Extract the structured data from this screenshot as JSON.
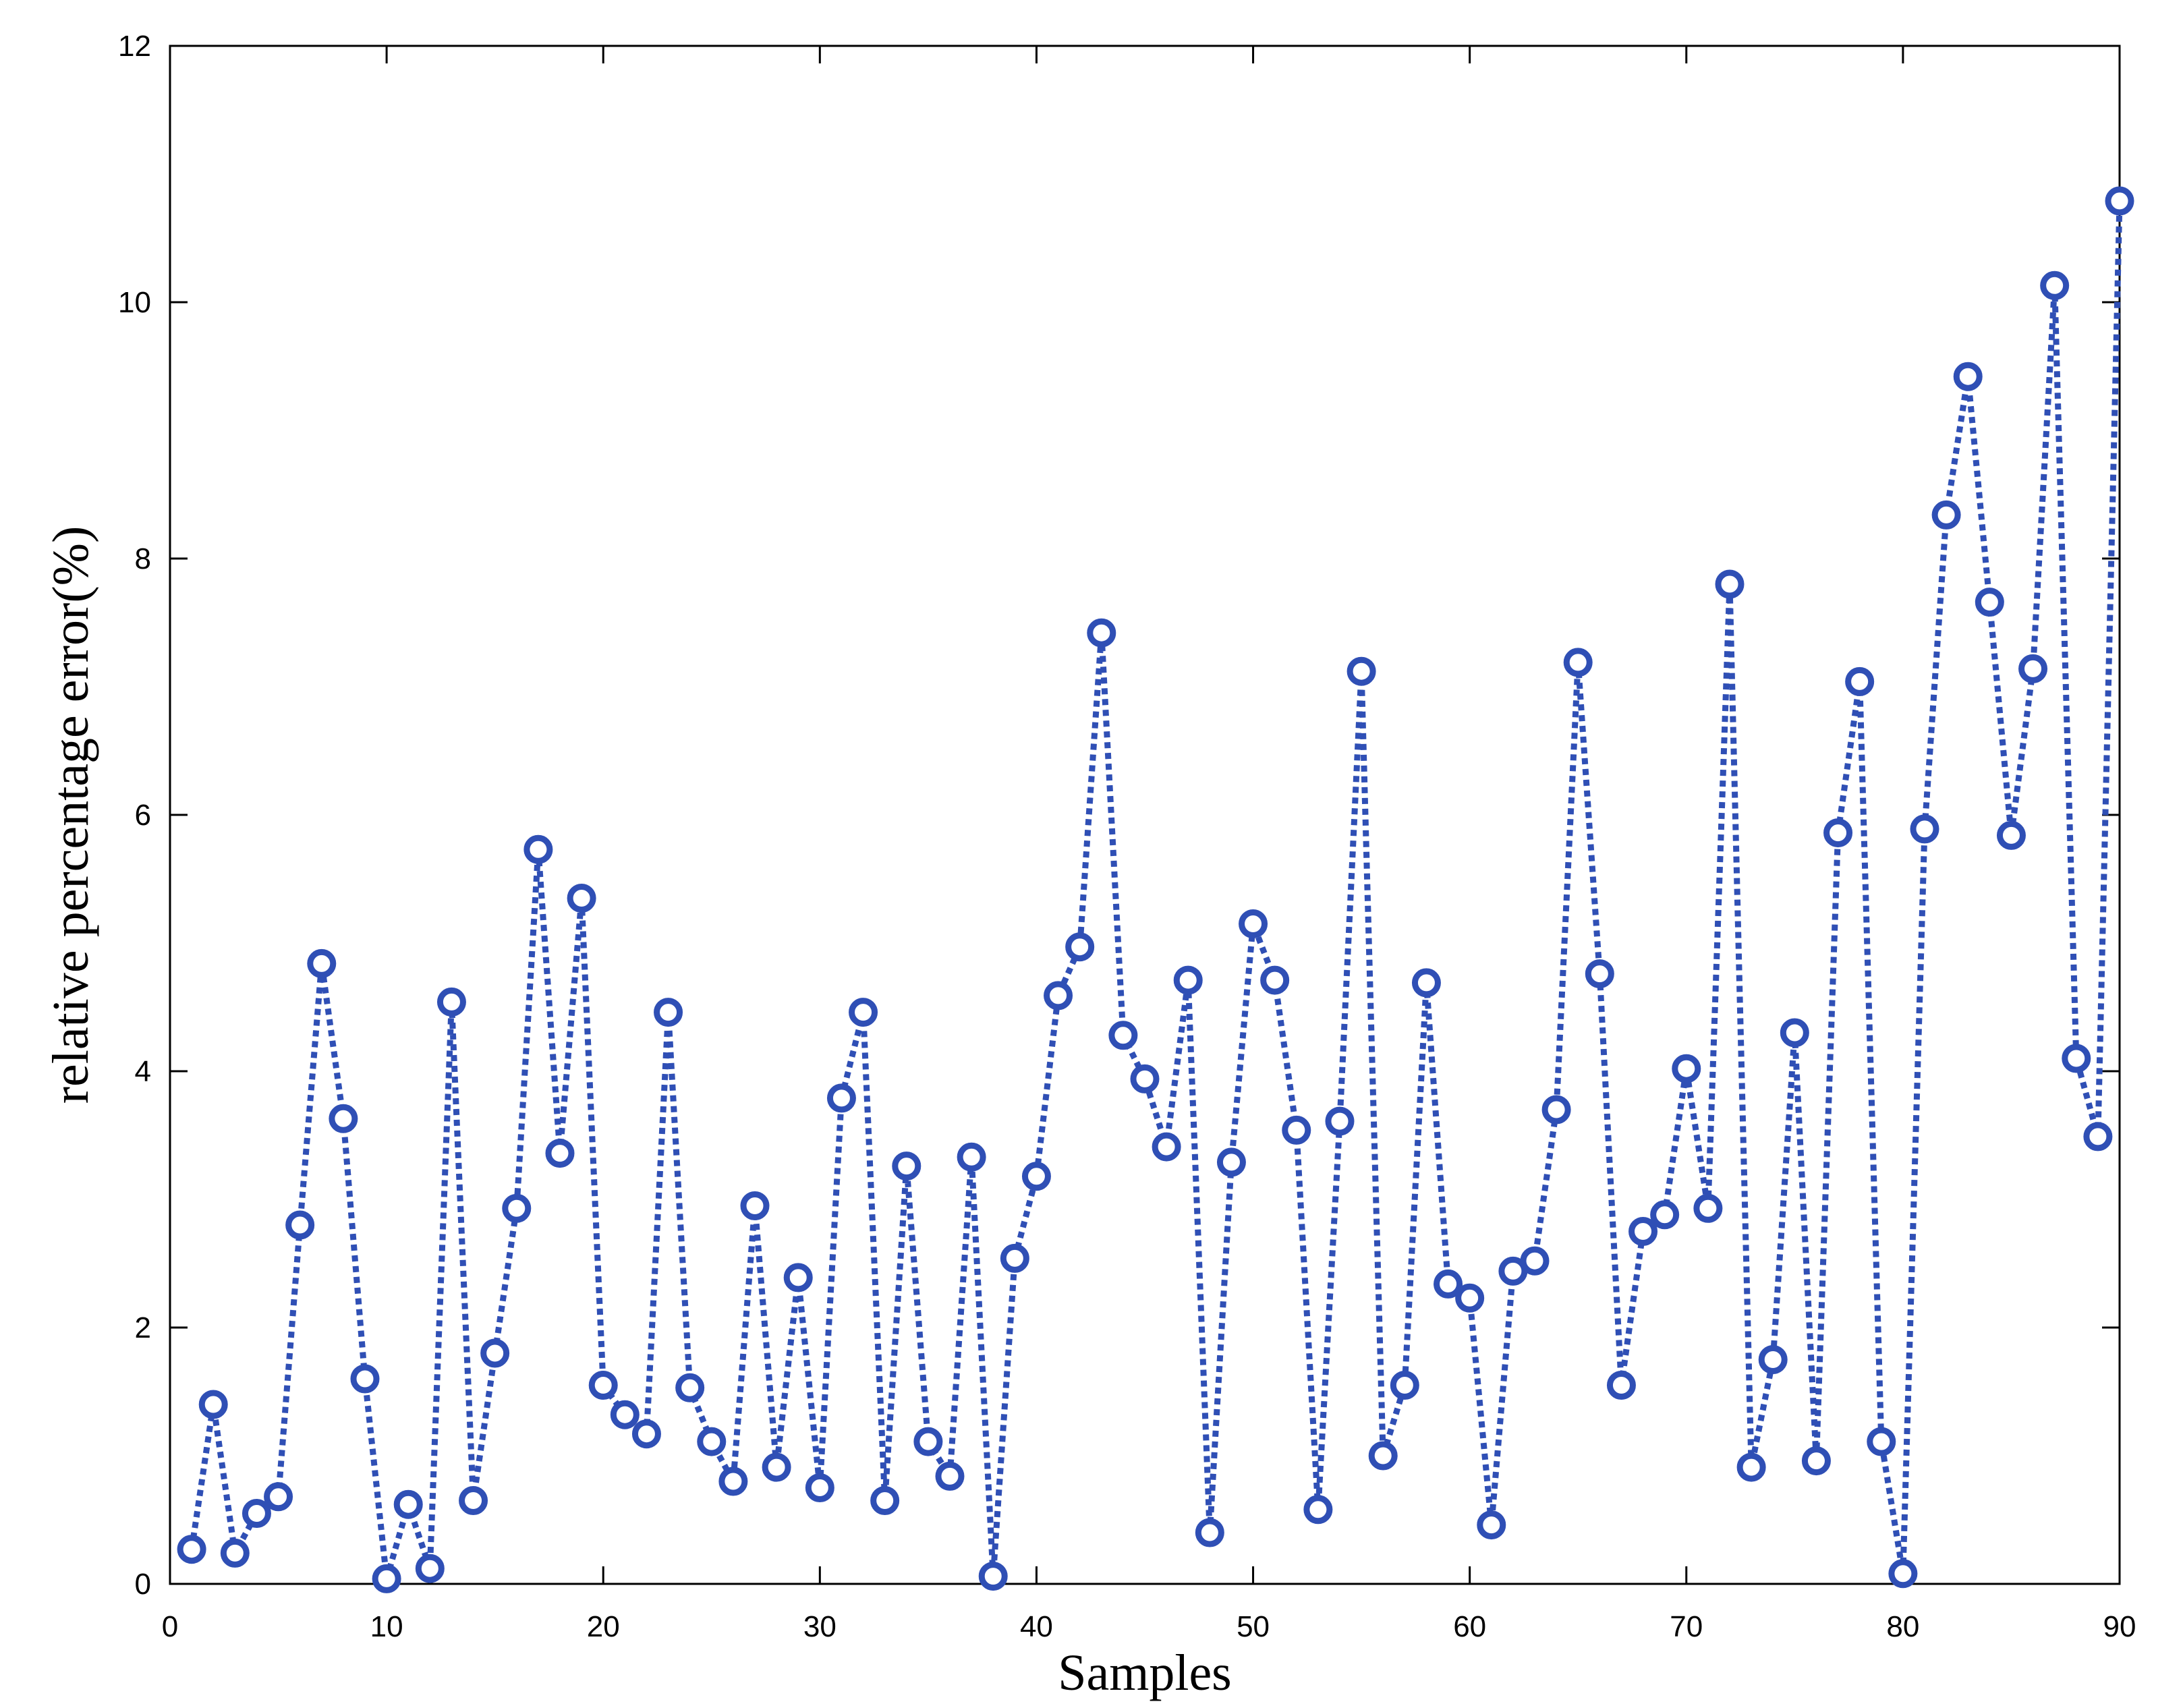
{
  "chart_data": {
    "type": "line",
    "title": "",
    "xlabel": "Samples",
    "ylabel": "relative percentage error(%)",
    "xlim": [
      0,
      90
    ],
    "ylim": [
      0,
      12
    ],
    "xticks": [
      0,
      10,
      20,
      30,
      40,
      50,
      60,
      70,
      80,
      90
    ],
    "yticks": [
      0,
      2,
      4,
      6,
      8,
      10,
      12
    ],
    "grid": false,
    "legend": "none",
    "series": [
      {
        "color": "#2f4fb5",
        "line_style": "dotted",
        "marker": "circle",
        "x": [
          1,
          2,
          3,
          4,
          5,
          6,
          7,
          8,
          9,
          10,
          11,
          12,
          13,
          14,
          15,
          16,
          17,
          18,
          19,
          20,
          21,
          22,
          23,
          24,
          25,
          26,
          27,
          28,
          29,
          30,
          31,
          32,
          33,
          34,
          35,
          36,
          37,
          38,
          39,
          40,
          41,
          42,
          43,
          44,
          45,
          46,
          47,
          48,
          49,
          50,
          51,
          52,
          53,
          54,
          55,
          56,
          57,
          58,
          59,
          60,
          61,
          62,
          63,
          64,
          65,
          66,
          67,
          68,
          69,
          70,
          71,
          72,
          73,
          74,
          75,
          76,
          77,
          78,
          79,
          80,
          81,
          82,
          83,
          84,
          85,
          86,
          87,
          88,
          89,
          90
        ],
        "values": [
          0.27,
          1.4,
          0.24,
          0.55,
          0.68,
          2.8,
          4.84,
          3.63,
          1.6,
          0.04,
          0.62,
          0.12,
          4.54,
          0.65,
          1.8,
          2.93,
          5.73,
          3.36,
          5.35,
          1.55,
          1.32,
          1.17,
          4.46,
          1.53,
          1.11,
          0.8,
          2.95,
          0.91,
          2.39,
          0.75,
          3.79,
          4.46,
          0.65,
          3.26,
          1.11,
          0.84,
          3.33,
          0.06,
          2.54,
          3.18,
          4.59,
          4.97,
          7.42,
          4.28,
          3.94,
          3.41,
          4.71,
          0.4,
          3.29,
          5.15,
          4.71,
          3.54,
          0.58,
          3.61,
          7.12,
          1.0,
          1.55,
          4.69,
          2.34,
          2.23,
          0.46,
          2.44,
          2.52,
          3.7,
          7.19,
          4.76,
          1.55,
          2.75,
          2.88,
          4.02,
          2.93,
          7.8,
          0.91,
          1.75,
          4.3,
          0.96,
          5.86,
          7.04,
          1.11,
          0.08,
          5.89,
          8.34,
          9.42,
          7.66,
          5.84,
          7.14,
          10.13,
          4.1,
          3.49,
          10.79
        ]
      }
    ]
  }
}
